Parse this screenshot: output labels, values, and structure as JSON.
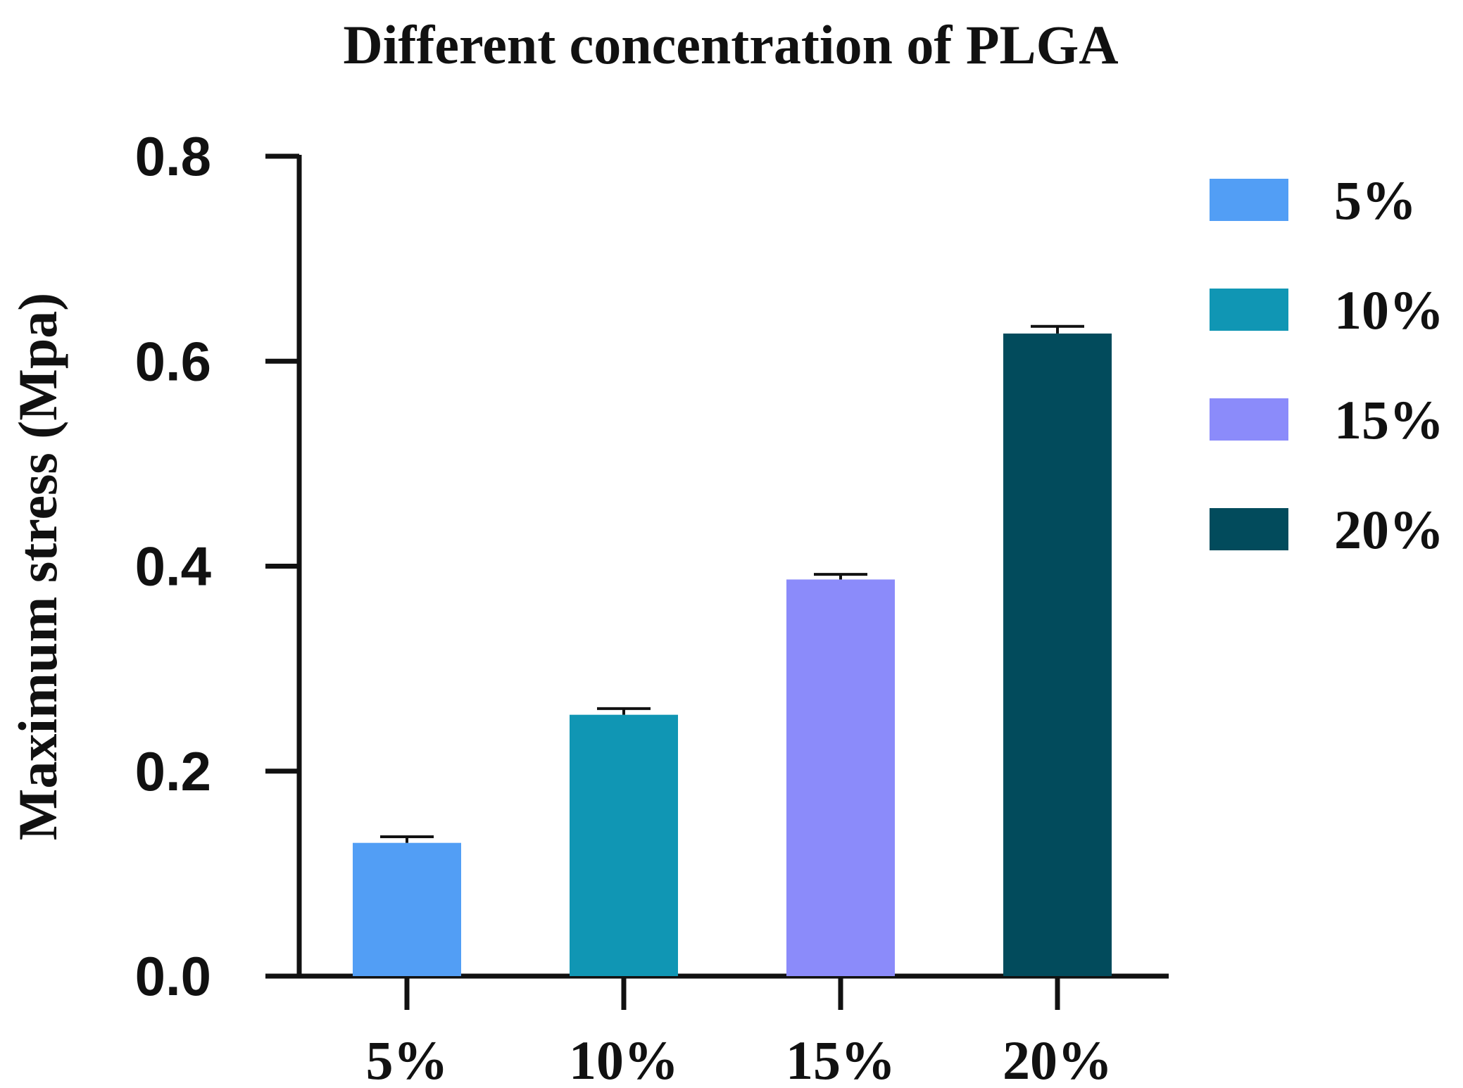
{
  "chart_data": {
    "type": "bar",
    "title": "Different concentration of PLGA",
    "xlabel": "",
    "ylabel": "Maximum stress  (Mpa)",
    "categories": [
      "5%",
      "10%",
      "15%",
      "20%"
    ],
    "values": [
      0.13,
      0.255,
      0.387,
      0.627
    ],
    "errors": [
      0.006,
      0.006,
      0.005,
      0.007
    ],
    "ylim": [
      0,
      0.8
    ],
    "yticks": [
      0.0,
      0.2,
      0.4,
      0.6,
      0.8
    ],
    "ytick_labels": [
      "0.0",
      "0.2",
      "0.4",
      "0.6",
      "0.8"
    ],
    "colors": [
      "#529ef5",
      "#1096b4",
      "#8b8bfa",
      "#024b5c"
    ],
    "legend": {
      "position": "right",
      "entries": [
        "5%",
        "10%",
        "15%",
        "20%"
      ]
    },
    "grid": false
  }
}
